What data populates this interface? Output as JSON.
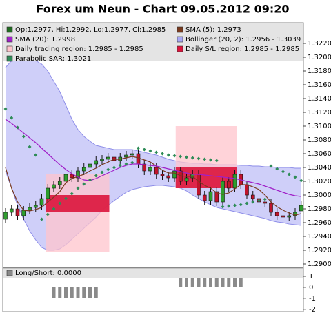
{
  "chart_data": [
    {
      "type": "candlestick",
      "title": "Forex um Neun - Chart 09.05.2012 09:20",
      "name": "Op:1.2977, Hi:1.2992, Lo:1.2977, Cl:1.2985",
      "color": "#1f6b1f",
      "up_color": "#2e9e2e",
      "down_color": "#c0142c",
      "open": [
        1.2965,
        1.2975,
        1.298,
        1.297,
        1.2978,
        1.2982,
        1.2985,
        1.2995,
        1.301,
        1.3015,
        1.302,
        1.303,
        1.3025,
        1.3035,
        1.304,
        1.3045,
        1.305,
        1.3052,
        1.3055,
        1.305,
        1.3055,
        1.3058,
        1.306,
        1.3045,
        1.3035,
        1.304,
        1.303,
        1.3028,
        1.3025,
        1.3035,
        1.302,
        1.3025,
        1.303,
        1.3,
        1.2992,
        1.3005,
        1.299,
        1.302,
        1.301,
        1.303,
        1.3015,
        1.3,
        1.2995,
        1.299,
        1.2988,
        1.2975,
        1.297,
        1.2968,
        1.297,
        1.2977
      ],
      "high": [
        1.2981,
        1.2986,
        1.2986,
        1.2984,
        1.2988,
        1.2991,
        1.3001,
        1.3016,
        1.3021,
        1.3026,
        1.3036,
        1.3036,
        1.3041,
        1.3046,
        1.3051,
        1.3056,
        1.3058,
        1.3061,
        1.3061,
        1.3061,
        1.3064,
        1.3066,
        1.3066,
        1.3051,
        1.3046,
        1.3046,
        1.3036,
        1.3034,
        1.3041,
        1.3041,
        1.3031,
        1.3036,
        1.3036,
        1.3006,
        1.3011,
        1.3011,
        1.3026,
        1.3026,
        1.3036,
        1.3036,
        1.3021,
        1.3006,
        1.3001,
        1.2996,
        1.2994,
        1.2981,
        1.2976,
        1.2976,
        1.2981,
        1.2992
      ],
      "low": [
        1.2959,
        1.2969,
        1.2964,
        1.2964,
        1.2972,
        1.2976,
        1.2979,
        1.2989,
        1.3004,
        1.3009,
        1.3014,
        1.3019,
        1.3019,
        1.3029,
        1.3034,
        1.3039,
        1.3044,
        1.3046,
        1.3044,
        1.3044,
        1.3049,
        1.3052,
        1.3039,
        1.3029,
        1.3029,
        1.3024,
        1.3022,
        1.3019,
        1.3019,
        1.3014,
        1.3014,
        1.3019,
        1.2994,
        1.2986,
        1.2986,
        1.2984,
        1.2984,
        1.3004,
        1.3004,
        1.3009,
        1.2994,
        1.2989,
        1.2984,
        1.2982,
        1.2969,
        1.2964,
        1.2962,
        1.2962,
        1.2964,
        1.2977
      ],
      "close": [
        1.2975,
        1.298,
        1.297,
        1.2978,
        1.2982,
        1.2985,
        1.2995,
        1.301,
        1.3015,
        1.302,
        1.303,
        1.3025,
        1.3035,
        1.304,
        1.3045,
        1.305,
        1.3052,
        1.3055,
        1.305,
        1.3055,
        1.3058,
        1.306,
        1.3045,
        1.3035,
        1.304,
        1.303,
        1.3028,
        1.3025,
        1.3035,
        1.302,
        1.3025,
        1.303,
        1.3,
        1.2992,
        1.3005,
        1.299,
        1.302,
        1.301,
        1.303,
        1.3015,
        1.3,
        1.2995,
        1.299,
        1.2988,
        1.2975,
        1.297,
        1.2968,
        1.297,
        1.2975,
        1.2985
      ],
      "overlays": [
        {
          "name": "SMA (5): 1.2973",
          "color": "#7a3a1e",
          "values": [
            1.304,
            1.301,
            1.299,
            1.2978,
            1.2977,
            1.2979,
            1.2982,
            1.299,
            1.2997,
            1.3005,
            1.3018,
            1.3024,
            1.3027,
            1.303,
            1.3035,
            1.3039,
            1.3044,
            1.3048,
            1.3052,
            1.3052,
            1.3054,
            1.3056,
            1.3054,
            1.3051,
            1.3048,
            1.3042,
            1.3036,
            1.3032,
            1.3032,
            1.3028,
            1.3027,
            1.3027,
            1.302,
            1.3014,
            1.301,
            1.3003,
            1.3001,
            1.3003,
            1.3009,
            1.3015,
            1.3015,
            1.3012,
            1.3008,
            1.3,
            1.299,
            1.2983,
            1.2978,
            1.2974,
            1.2971,
            1.2973
          ]
        },
        {
          "name": "SMA (20): 1.2998",
          "color": "#a020c8",
          "values": [
            1.311,
            1.3104,
            1.3097,
            1.309,
            1.3083,
            1.3076,
            1.3068,
            1.306,
            1.3052,
            1.3044,
            1.3037,
            1.3031,
            1.3026,
            1.3022,
            1.3021,
            1.3024,
            1.3028,
            1.3032,
            1.3036,
            1.304,
            1.3043,
            1.3045,
            1.3045,
            1.3044,
            1.3043,
            1.3042,
            1.304,
            1.3038,
            1.3036,
            1.3034,
            1.3032,
            1.303,
            1.303,
            1.3029,
            1.3028,
            1.3027,
            1.3026,
            1.3025,
            1.3024,
            1.3022,
            1.302,
            1.3018,
            1.3016,
            1.3013,
            1.301,
            1.3007,
            1.3004,
            1.3001,
            1.2999,
            1.2998
          ]
        }
      ],
      "band": {
        "name": "Bollinger (20, 2): 1.2956 - 1.3039",
        "color": "#a8a8f4",
        "upper": [
          1.3185,
          1.3195,
          1.32,
          1.32,
          1.32,
          1.3195,
          1.319,
          1.318,
          1.3165,
          1.315,
          1.313,
          1.311,
          1.3095,
          1.3085,
          1.3078,
          1.3072,
          1.307,
          1.3068,
          1.3066,
          1.3066,
          1.3066,
          1.3066,
          1.3064,
          1.3062,
          1.306,
          1.3058,
          1.3055,
          1.3052,
          1.305,
          1.3048,
          1.3047,
          1.3046,
          1.3046,
          1.3045,
          1.3045,
          1.3044,
          1.3044,
          1.3044,
          1.3044,
          1.3043,
          1.3043,
          1.3042,
          1.3042,
          1.3041,
          1.3041,
          1.304,
          1.304,
          1.304,
          1.3039,
          1.3039
        ],
        "lower": [
          1.3035,
          1.301,
          1.2985,
          1.2965,
          1.2948,
          1.2935,
          1.2924,
          1.292,
          1.292,
          1.2922,
          1.2928,
          1.2936,
          1.2944,
          1.2952,
          1.296,
          1.2968,
          1.2978,
          1.2985,
          1.2992,
          1.2998,
          1.3004,
          1.3008,
          1.301,
          1.3012,
          1.3013,
          1.3014,
          1.3014,
          1.3013,
          1.3012,
          1.301,
          1.3006,
          1.3,
          1.2995,
          1.299,
          1.2986,
          1.2982,
          1.298,
          1.2978,
          1.2976,
          1.2974,
          1.2972,
          1.297,
          1.2968,
          1.2966,
          1.2963,
          1.2961,
          1.296,
          1.2958,
          1.2957,
          1.2956
        ]
      },
      "regions": [
        {
          "name": "Daily trading region: 1.2985 - 1.2985",
          "color": "#ffc4cc",
          "areas": [
            {
              "x": [
                6.7,
                17.2
              ],
              "y": [
                1.2917,
                1.303
              ]
            },
            {
              "x": [
                28.2,
                38.4
              ],
              "y": [
                1.301,
                1.31
              ]
            }
          ]
        },
        {
          "name": "Daily S/L region: 1.2985 - 1.2985",
          "color": "#dc143c",
          "areas": [
            {
              "x": [
                6.7,
                17.2
              ],
              "y": [
                1.2976,
                1.3
              ]
            },
            {
              "x": [
                28.2,
                38.4
              ],
              "y": [
                1.301,
                1.304
              ]
            }
          ]
        }
      ],
      "sar": {
        "name": "Parabolic SAR: 1.3021",
        "color": "#2e8b57",
        "values": [
          1.3125,
          1.3112,
          1.3098,
          1.3085,
          1.307,
          1.3058,
          1.2965,
          1.2972,
          1.298,
          1.2988,
          1.2995,
          1.3002,
          1.301,
          1.3016,
          1.3022,
          1.3028,
          1.3033,
          1.3037,
          1.304,
          1.3043,
          1.3045,
          1.3047,
          1.3068,
          1.3066,
          1.3064,
          1.3062,
          1.306,
          1.3058,
          1.3057,
          1.3056,
          1.3055,
          1.3054,
          1.3053,
          1.3052,
          1.3051,
          1.305,
          1.2983,
          1.2984,
          1.2985,
          1.2986,
          1.2988,
          1.299,
          1.2992,
          1.2994,
          1.3042,
          1.3038,
          1.3034,
          1.303,
          1.3026,
          1.3021
        ]
      },
      "ylim": [
        1.2895,
        1.325
      ],
      "yticks": [
        {
          "value": 1.29,
          "label": "1.2900"
        },
        {
          "value": 1.292,
          "label": "1.2920"
        },
        {
          "value": 1.294,
          "label": "1.2940"
        },
        {
          "value": 1.296,
          "label": "1.2960"
        },
        {
          "value": 1.298,
          "label": "1.2980"
        },
        {
          "value": 1.3,
          "label": "1.3000"
        },
        {
          "value": 1.302,
          "label": "1.3020"
        },
        {
          "value": 1.304,
          "label": "1.3040"
        },
        {
          "value": 1.306,
          "label": "1.3060"
        },
        {
          "value": 1.308,
          "label": "1.3080"
        },
        {
          "value": 1.31,
          "label": "1.3100"
        },
        {
          "value": 1.312,
          "label": "1.3120"
        },
        {
          "value": 1.314,
          "label": "1.3140"
        },
        {
          "value": 1.316,
          "label": "1.3160"
        },
        {
          "value": 1.318,
          "label": "1.3180"
        },
        {
          "value": 1.32,
          "label": "1.3200"
        },
        {
          "value": 1.322,
          "label": "1.3220"
        }
      ]
    },
    {
      "type": "bar",
      "name": "Long/Short: 0.0000",
      "color": "#8a8a8a",
      "values": [
        0,
        0,
        0,
        0,
        0,
        0,
        0,
        0,
        -1,
        -1,
        -1,
        -1,
        -1,
        -1,
        -1,
        -1,
        0,
        0,
        0,
        0,
        0,
        0,
        0,
        0,
        0,
        0,
        0,
        0,
        0,
        1,
        1,
        1,
        1,
        1,
        1,
        1,
        1,
        1,
        1,
        1,
        0,
        0,
        0,
        0,
        0,
        0,
        0,
        0,
        0,
        0
      ],
      "ylim": [
        -2.2,
        1.75
      ],
      "yticks": [
        1,
        0,
        -1,
        -2
      ]
    }
  ]
}
